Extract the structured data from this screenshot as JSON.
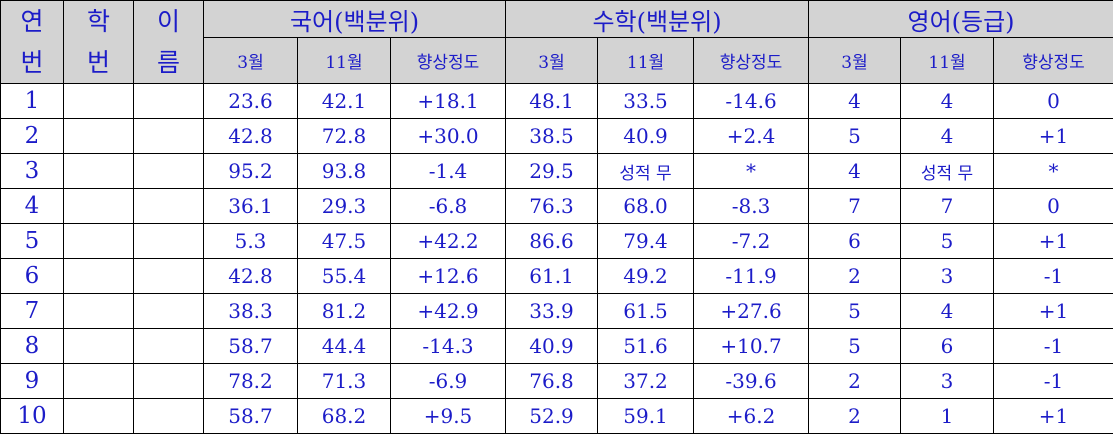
{
  "header": {
    "columns": [
      {
        "top": "연",
        "bottom": "번"
      },
      {
        "top": "학",
        "bottom": "번"
      },
      {
        "top": "이",
        "bottom": "름"
      }
    ],
    "groups": [
      {
        "title": "국어(백분위)",
        "sub": [
          "3월",
          "11월",
          "향상정도"
        ]
      },
      {
        "title": "수학(백분위)",
        "sub": [
          "3월",
          "11월",
          "향상정도"
        ]
      },
      {
        "title": "영어(등급)",
        "sub": [
          "3월",
          "11월",
          "향상정도"
        ]
      }
    ]
  },
  "table": {
    "rows": [
      {
        "no": "1",
        "values": [
          "23.6",
          "42.1",
          "+18.1",
          "48.1",
          "33.5",
          "-14.6",
          "4",
          "4",
          "0"
        ]
      },
      {
        "no": "2",
        "values": [
          "42.8",
          "72.8",
          "+30.0",
          "38.5",
          "40.9",
          "+2.4",
          "5",
          "4",
          "+1"
        ]
      },
      {
        "no": "3",
        "values": [
          "95.2",
          "93.8",
          "-1.4",
          "29.5",
          "성적 무",
          "*",
          "4",
          "성적 무",
          "*"
        ]
      },
      {
        "no": "4",
        "values": [
          "36.1",
          "29.3",
          "-6.8",
          "76.3",
          "68.0",
          "-8.3",
          "7",
          "7",
          "0"
        ]
      },
      {
        "no": "5",
        "values": [
          "5.3",
          "47.5",
          "+42.2",
          "86.6",
          "79.4",
          "-7.2",
          "6",
          "5",
          "+1"
        ]
      },
      {
        "no": "6",
        "values": [
          "42.8",
          "55.4",
          "+12.6",
          "61.1",
          "49.2",
          "-11.9",
          "2",
          "3",
          "-1"
        ]
      },
      {
        "no": "7",
        "values": [
          "38.3",
          "81.2",
          "+42.9",
          "33.9",
          "61.5",
          "+27.6",
          "5",
          "4",
          "+1"
        ]
      },
      {
        "no": "8",
        "values": [
          "58.7",
          "44.4",
          "-14.3",
          "40.9",
          "51.6",
          "+10.7",
          "5",
          "6",
          "-1"
        ]
      },
      {
        "no": "9",
        "values": [
          "78.2",
          "71.3",
          "-6.9",
          "76.8",
          "37.2",
          "-39.6",
          "2",
          "3",
          "-1"
        ]
      },
      {
        "no": "10",
        "values": [
          "58.7",
          "68.2",
          "+9.5",
          "52.9",
          "59.1",
          "+6.2",
          "2",
          "1",
          "+1"
        ]
      }
    ]
  }
}
